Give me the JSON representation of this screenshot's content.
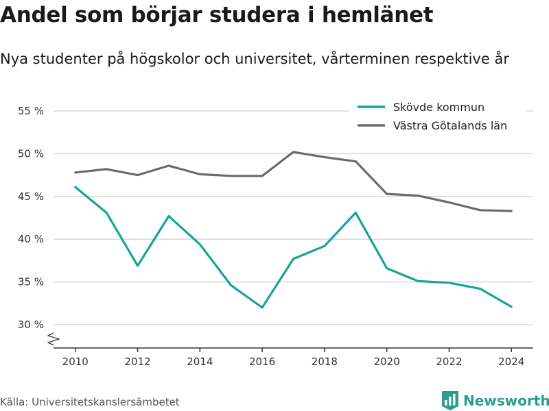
{
  "header": {
    "title": "Andel som börjar studera i hemlänet",
    "subtitle": "Nya studenter på högskolor och universitet, vårterminen respektive år"
  },
  "footer": {
    "source": "Källa: Universitetskanslersämbetet",
    "brand": "Newsworthy",
    "brand_icon": "bar-chart-logo-icon"
  },
  "colors": {
    "skovde": "#17a398",
    "vastra": "#6b6b6b",
    "grid": "#d9d9d9",
    "axis": "#333333",
    "brand": "#2a9d8f"
  },
  "chart_data": {
    "type": "line",
    "x": [
      2010,
      2011,
      2012,
      2013,
      2014,
      2015,
      2016,
      2017,
      2018,
      2019,
      2020,
      2021,
      2022,
      2023,
      2024
    ],
    "series": [
      {
        "name": "Skövde kommun",
        "values": [
          46.1,
          43.1,
          36.9,
          42.7,
          39.4,
          34.6,
          32.0,
          37.7,
          39.2,
          43.1,
          36.6,
          35.1,
          34.9,
          34.2,
          32.1
        ]
      },
      {
        "name": "Västra Götalands län",
        "values": [
          47.8,
          48.2,
          47.5,
          48.6,
          47.6,
          47.4,
          47.4,
          50.2,
          49.6,
          49.1,
          45.3,
          45.1,
          44.3,
          43.4,
          43.3
        ]
      }
    ],
    "xticks": [
      "2010",
      "2012",
      "2014",
      "2016",
      "2018",
      "2020",
      "2022",
      "2024"
    ],
    "yticks": [
      "30 %",
      "35 %",
      "40 %",
      "45 %",
      "50 %",
      "55 %"
    ],
    "ytick_values": [
      30,
      35,
      40,
      45,
      50,
      55
    ],
    "ylim": [
      30,
      55
    ],
    "xlim": [
      2009.3,
      2024.7
    ],
    "y_axis_break": true,
    "grid": true,
    "legend_position": "top-right"
  }
}
